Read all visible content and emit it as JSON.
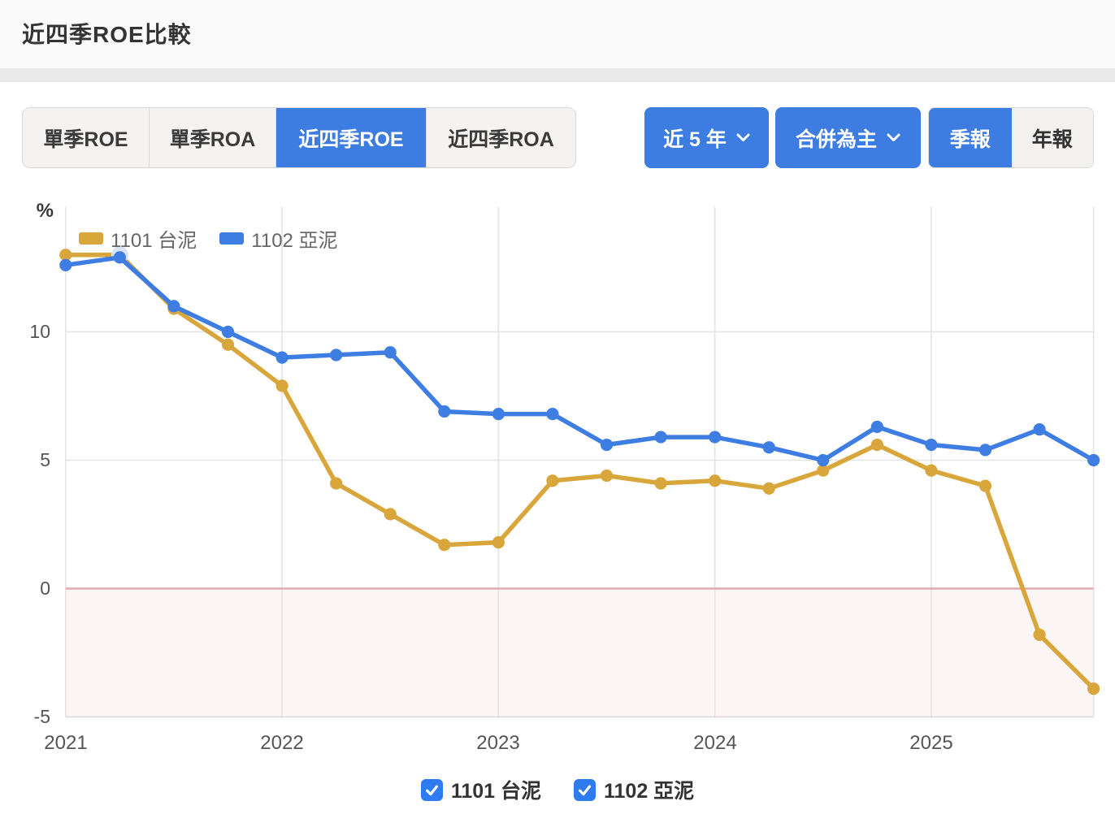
{
  "header": {
    "title": "近四季ROE比較"
  },
  "metric_tabs": {
    "items": [
      {
        "label": "單季ROE",
        "active": false
      },
      {
        "label": "單季ROA",
        "active": false
      },
      {
        "label": "近四季ROE",
        "active": true
      },
      {
        "label": "近四季ROA",
        "active": false
      }
    ]
  },
  "controls": {
    "range_dropdown_label": "近 5 年",
    "consolidation_dropdown_label": "合併為主",
    "period_toggle": [
      {
        "label": "季報",
        "active": true
      },
      {
        "label": "年報",
        "active": false
      }
    ]
  },
  "chart_data": {
    "type": "line",
    "title": "近四季ROE比較",
    "unit": "%",
    "y_ticks": [
      10,
      5,
      0,
      -5
    ],
    "ylim": [
      -5,
      14.8
    ],
    "x_tick_labels": [
      "2021",
      "2022",
      "2023",
      "2024",
      "2025"
    ],
    "x_tick_indices": [
      0,
      4,
      8,
      12,
      16
    ],
    "categories": [
      "2021Q1",
      "2021Q2",
      "2021Q3",
      "2021Q4",
      "2022Q1",
      "2022Q2",
      "2022Q3",
      "2022Q4",
      "2023Q1",
      "2023Q2",
      "2023Q3",
      "2023Q4",
      "2024Q1",
      "2024Q2",
      "2024Q3",
      "2024Q4",
      "2025Q1",
      "2025Q2",
      "2025Q3",
      "2025Q4"
    ],
    "grid": true,
    "legend_position": "top-left",
    "series": [
      {
        "name": "1101 台泥",
        "color": "#D9A63C",
        "values": [
          13.0,
          13.0,
          10.9,
          9.5,
          7.9,
          4.1,
          2.9,
          1.7,
          1.8,
          4.2,
          4.4,
          4.1,
          4.2,
          3.9,
          4.6,
          5.6,
          4.6,
          4.0,
          -1.8,
          -3.9
        ]
      },
      {
        "name": "1102 亞泥",
        "color": "#3E7DE2",
        "values": [
          12.6,
          12.9,
          11.0,
          10.0,
          9.0,
          9.1,
          9.2,
          6.9,
          6.8,
          6.8,
          5.6,
          5.9,
          5.9,
          5.5,
          5.0,
          6.3,
          5.6,
          5.4,
          6.2,
          5.0
        ]
      }
    ],
    "highlight": {
      "series_index": 0,
      "point_index": 1,
      "halo_color": "#D8E4F7"
    },
    "zero_line_color": "#E2A9B1",
    "negative_area_color": "#FCF5F6",
    "gridline_color": "#E4E4E4",
    "bottom_line_color": "#D8D8D8"
  },
  "footer_checkboxes": [
    {
      "label": "1101 台泥",
      "checked": true
    },
    {
      "label": "1102 亞泥",
      "checked": true
    }
  ],
  "colors": {
    "accent_blue": "#3D7CE0",
    "checkbox_blue": "#2F7BF2",
    "header_bg": "#FAFAFA",
    "divider": "#EAEAEA"
  }
}
